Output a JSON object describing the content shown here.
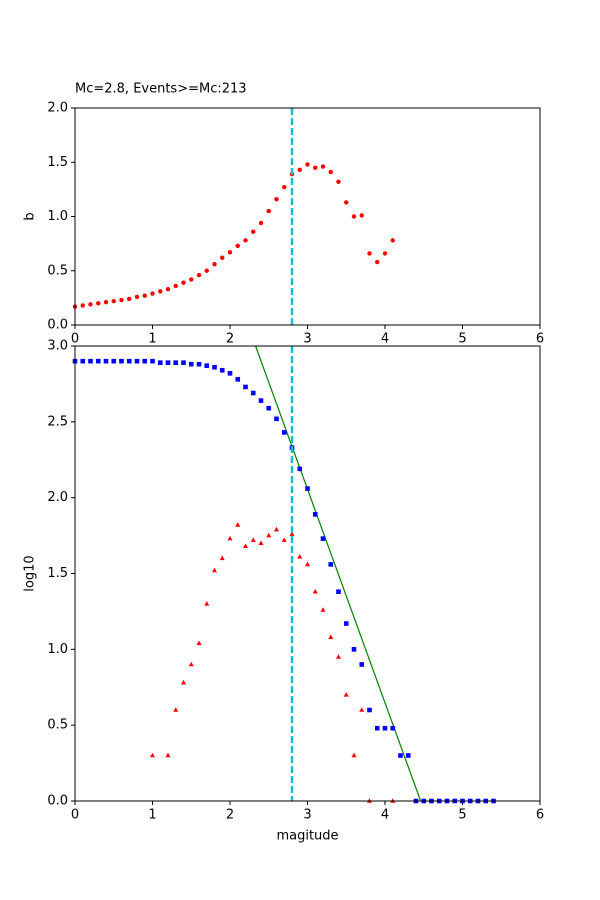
{
  "chart_data": [
    {
      "type": "scatter",
      "title": "Mc=2.8, Events>=Mc:213",
      "ylabel": "b",
      "xlim": [
        0,
        6
      ],
      "xticks": [
        0,
        1,
        2,
        3,
        4,
        5,
        6
      ],
      "ylim": [
        0,
        2
      ],
      "yticks": [
        {
          "value": 0,
          "label": "0.0"
        },
        0.5,
        {
          "value": 1,
          "label": "1.0"
        },
        1.5,
        {
          "value": 2,
          "label": "2.0"
        }
      ],
      "mc_line": {
        "x": 2.8,
        "color": "#17becf"
      },
      "series": [
        {
          "marker": "circle",
          "color": "#ff0000",
          "x": [
            0,
            0.1,
            0.2,
            0.3,
            0.4,
            0.5,
            0.6,
            0.7,
            0.8,
            0.9,
            1.0,
            1.1,
            1.2,
            1.3,
            1.4,
            1.5,
            1.6,
            1.7,
            1.8,
            1.9,
            2.0,
            2.1,
            2.2,
            2.3,
            2.4,
            2.5,
            2.6,
            2.7,
            2.8,
            2.9,
            3.0,
            3.1,
            3.2,
            3.3,
            3.4,
            3.5,
            3.6,
            3.7,
            3.8,
            3.9,
            4.0,
            4.1
          ],
          "values": [
            0.17,
            0.18,
            0.19,
            0.2,
            0.21,
            0.22,
            0.23,
            0.24,
            0.26,
            0.27,
            0.29,
            0.31,
            0.33,
            0.36,
            0.39,
            0.42,
            0.46,
            0.5,
            0.56,
            0.62,
            0.67,
            0.73,
            0.78,
            0.86,
            0.94,
            1.05,
            1.16,
            1.27,
            1.39,
            1.43,
            1.48,
            1.45,
            1.46,
            1.41,
            1.32,
            1.13,
            1.0,
            1.01,
            0.66,
            0.58,
            0.66,
            0.78
          ]
        }
      ]
    },
    {
      "type": "scatter",
      "xlabel": "magitude",
      "ylabel": "log10",
      "xlim": [
        0,
        6
      ],
      "xticks": [
        0,
        1,
        2,
        3,
        4,
        5,
        6
      ],
      "ylim": [
        0,
        3
      ],
      "yticks": [
        {
          "value": 0,
          "label": "0.0"
        },
        0.5,
        {
          "value": 1,
          "label": "1.0"
        },
        1.5,
        {
          "value": 2,
          "label": "2.0"
        },
        2.5,
        {
          "value": 3,
          "label": "3.0"
        }
      ],
      "mc_line": {
        "x": 2.8,
        "color": "#17becf"
      },
      "fit_line": {
        "x": [
          2.33,
          4.46
        ],
        "values": [
          3,
          0
        ],
        "color": "#008000"
      },
      "series": [
        {
          "marker": "square",
          "color": "#0000ff",
          "x": [
            0,
            0.1,
            0.2,
            0.3,
            0.4,
            0.5,
            0.6,
            0.7,
            0.8,
            0.9,
            1.0,
            1.1,
            1.2,
            1.3,
            1.4,
            1.5,
            1.6,
            1.7,
            1.8,
            1.9,
            2.0,
            2.1,
            2.2,
            2.3,
            2.4,
            2.5,
            2.6,
            2.7,
            2.8,
            2.9,
            3.0,
            3.1,
            3.2,
            3.3,
            3.4,
            3.5,
            3.6,
            3.7,
            3.8,
            3.9,
            4.0,
            4.1,
            4.2,
            4.3,
            4.4,
            4.5,
            4.6,
            4.7,
            4.8,
            4.9,
            5.0,
            5.1,
            5.2,
            5.3,
            5.4
          ],
          "values": [
            2.9,
            2.9,
            2.9,
            2.9,
            2.9,
            2.9,
            2.9,
            2.9,
            2.9,
            2.9,
            2.9,
            2.89,
            2.89,
            2.89,
            2.89,
            2.88,
            2.88,
            2.87,
            2.86,
            2.84,
            2.82,
            2.78,
            2.73,
            2.69,
            2.64,
            2.59,
            2.52,
            2.43,
            2.33,
            2.19,
            2.06,
            1.89,
            1.73,
            1.56,
            1.38,
            1.17,
            1.0,
            0.9,
            0.6,
            0.48,
            0.48,
            0.48,
            0.3,
            0.3,
            0,
            0,
            0,
            0,
            0,
            0,
            0,
            0,
            0,
            0,
            0
          ]
        },
        {
          "marker": "triangle",
          "color": "#ff0000",
          "x": [
            1.0,
            1.2,
            1.3,
            1.4,
            1.5,
            1.6,
            1.7,
            1.8,
            1.9,
            2.0,
            2.1,
            2.2,
            2.3,
            2.4,
            2.5,
            2.6,
            2.7,
            2.8,
            2.9,
            3.0,
            3.1,
            3.2,
            3.3,
            3.4,
            3.5,
            3.6,
            3.7,
            3.8,
            4.1
          ],
          "values": [
            0.3,
            0.3,
            0.6,
            0.78,
            0.9,
            1.04,
            1.3,
            1.52,
            1.6,
            1.73,
            1.82,
            1.68,
            1.72,
            1.7,
            1.75,
            1.79,
            1.72,
            1.76,
            1.61,
            1.56,
            1.38,
            1.26,
            1.08,
            0.95,
            0.7,
            0.3,
            0.6,
            0,
            0
          ]
        }
      ]
    }
  ]
}
